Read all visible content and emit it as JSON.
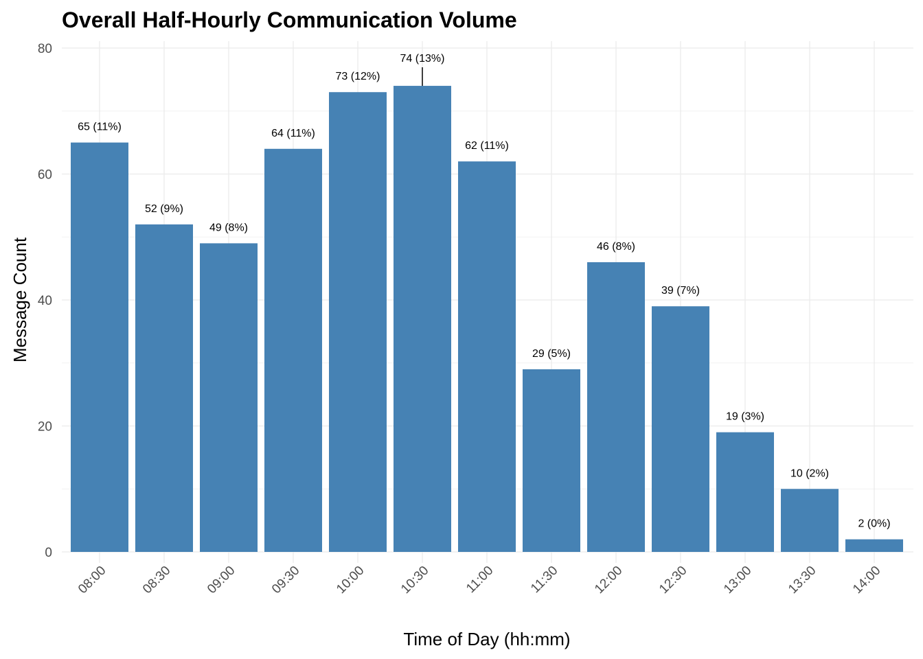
{
  "chart_data": {
    "type": "bar",
    "title": "Overall Half-Hourly Communication Volume",
    "xlabel": "Time of Day (hh:mm)",
    "ylabel": "Message Count",
    "categories": [
      "08:00",
      "08:30",
      "09:00",
      "09:30",
      "10:00",
      "10:30",
      "11:00",
      "11:30",
      "12:00",
      "12:30",
      "13:00",
      "13:30",
      "14:00"
    ],
    "values": [
      65,
      52,
      49,
      64,
      73,
      74,
      62,
      29,
      46,
      39,
      19,
      10,
      2
    ],
    "data_labels": [
      "65 (11%)",
      "52 (9%)",
      "49 (8%)",
      "64 (11%)",
      "73 (12%)",
      "74 (13%)",
      "62 (11%)",
      "29 (5%)",
      "46 (8%)",
      "39 (7%)",
      "19 (3%)",
      "10 (2%)",
      "2 (0%)"
    ],
    "ylim": [
      0,
      80
    ],
    "yticks": [
      0,
      20,
      40,
      60,
      80
    ],
    "grid": true,
    "legend": "none",
    "bar_color": "#4682B4"
  }
}
